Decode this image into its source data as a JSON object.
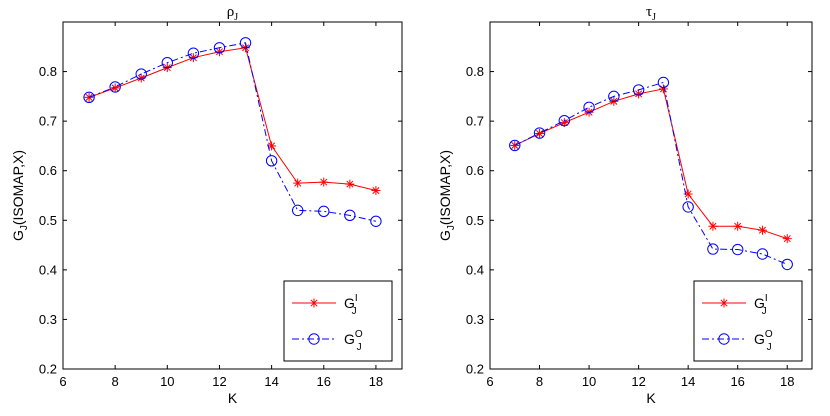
{
  "chart_data": [
    {
      "type": "line",
      "title": "ρ_J",
      "title_main": "ρ",
      "title_sub": "J",
      "xlabel": "K",
      "ylabel": "G_J(ISOMAP,X)",
      "ylabel_main": "G",
      "ylabel_sub": "J",
      "ylabel_rest": "(ISOMAP,X)",
      "xlim": [
        6,
        19
      ],
      "ylim": [
        0.2,
        0.9
      ],
      "xticks": [
        "6",
        "8",
        "10",
        "12",
        "14",
        "16",
        "18"
      ],
      "yticks": [
        "0.2",
        "0.3",
        "0.4",
        "0.5",
        "0.6",
        "0.7",
        "0.8"
      ],
      "legend_position": "bottom-right",
      "x": [
        7,
        8,
        9,
        10,
        11,
        12,
        13,
        14,
        15,
        16,
        17,
        18
      ],
      "series": [
        {
          "name": "G_J^I",
          "label_main": "G",
          "label_sup": "I",
          "label_sub": "J",
          "color": "#ff0000",
          "marker": "star",
          "line": "solid",
          "values": [
            0.748,
            0.767,
            0.787,
            0.808,
            0.828,
            0.84,
            0.848,
            0.65,
            0.575,
            0.577,
            0.573,
            0.56
          ]
        },
        {
          "name": "G_J^O",
          "label_main": "G",
          "label_sup": "O",
          "label_sub": "J",
          "color": "#0000ff",
          "marker": "circle",
          "line": "dashdot",
          "values": [
            0.748,
            0.769,
            0.795,
            0.818,
            0.837,
            0.848,
            0.858,
            0.62,
            0.52,
            0.518,
            0.51,
            0.498
          ]
        }
      ]
    },
    {
      "type": "line",
      "title": "τ_J",
      "title_main": "τ",
      "title_sub": "J",
      "xlabel": "K",
      "ylabel": "G_J(ISOMAP,X)",
      "ylabel_main": "G",
      "ylabel_sub": "J",
      "ylabel_rest": "(ISOMAP,X)",
      "xlim": [
        6,
        19
      ],
      "ylim": [
        0.2,
        0.9
      ],
      "xticks": [
        "6",
        "8",
        "10",
        "12",
        "14",
        "16",
        "18"
      ],
      "yticks": [
        "0.2",
        "0.3",
        "0.4",
        "0.5",
        "0.6",
        "0.7",
        "0.8"
      ],
      "legend_position": "bottom-right",
      "x": [
        7,
        8,
        9,
        10,
        11,
        12,
        13,
        14,
        15,
        16,
        17,
        18
      ],
      "series": [
        {
          "name": "G_J^I",
          "label_main": "G",
          "label_sup": "I",
          "label_sub": "J",
          "color": "#ff0000",
          "marker": "star",
          "line": "solid",
          "values": [
            0.651,
            0.675,
            0.697,
            0.718,
            0.74,
            0.755,
            0.765,
            0.553,
            0.488,
            0.488,
            0.48,
            0.463
          ]
        },
        {
          "name": "G_J^O",
          "label_main": "G",
          "label_sup": "O",
          "label_sub": "J",
          "color": "#0000ff",
          "marker": "circle",
          "line": "dashdot",
          "values": [
            0.651,
            0.676,
            0.701,
            0.728,
            0.75,
            0.763,
            0.778,
            0.527,
            0.442,
            0.441,
            0.432,
            0.411
          ]
        }
      ]
    }
  ]
}
